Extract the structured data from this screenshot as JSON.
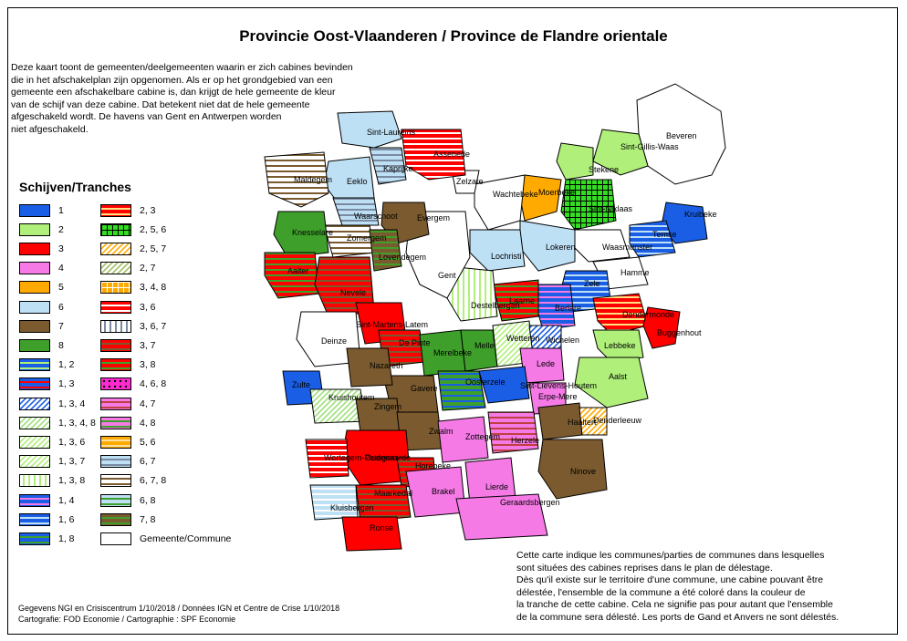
{
  "title": "Provincie Oost-Vlaanderen / Province de Flandre orientale",
  "intro_nl": "Deze kaart toont de gemeenten/deelgemeenten waarin er zich cabines bevinden\n die in het afschakelplan zijn opgenomen. Als er op het grondgebied van een\n gemeente  een afschakelbare  cabine is, dan krijgt de hele gemeente  de kleur\nvan de schijf van deze cabine. Dat betekent niet dat de hele gemeente\nafgeschakeld wordt. De havens van Gent en Antwerpen  worden\n niet afgeschakeld.",
  "intro_fr": "Cette carte indique les communes/parties de communes dans lesquelles\nsont situées des cabines reprises dans le plan de délestage.\nDès qu'il existe sur le territoire  d'une commune, une cabine pouvant être\ndélestée,  l'ensemble de la commune  a été coloré dans la couleur de\n la tranche  de cette cabine.  Cela ne signifie pas pour autant que  l'ensemble\nde la commune sera délesté. Les ports de Gand et Anvers ne sont délestés.",
  "credits": "Gegevens NGI en Crisiscentrum 1/10/2018 / Données IGN et Centre de Crise 1/10/2018\nCartografie: FOD Economie / Cartographie : SPF Economie",
  "legend": {
    "title": "Schijven/Tranches",
    "items": [
      {
        "label": "1",
        "fill": "#1a5ee6",
        "pattern": "solid",
        "color2": ""
      },
      {
        "label": "2",
        "fill": "#b0f07a",
        "pattern": "solid",
        "color2": ""
      },
      {
        "label": "3",
        "fill": "#ff0000",
        "pattern": "solid",
        "color2": ""
      },
      {
        "label": "4",
        "fill": "#f57ae6",
        "pattern": "solid",
        "color2": ""
      },
      {
        "label": "5",
        "fill": "#ffaa00",
        "pattern": "solid",
        "color2": ""
      },
      {
        "label": "6",
        "fill": "#bee0f5",
        "pattern": "solid",
        "color2": ""
      },
      {
        "label": "7",
        "fill": "#7a5a2e",
        "pattern": "solid",
        "color2": ""
      },
      {
        "label": "8",
        "fill": "#3ea02a",
        "pattern": "solid",
        "color2": ""
      },
      {
        "label": "1, 2",
        "fill": "#1a5ee6",
        "pattern": "horizontal",
        "color2": "#b0f07a"
      },
      {
        "label": "1, 3",
        "fill": "#1a5ee6",
        "pattern": "horizontal",
        "color2": "#ff0000"
      },
      {
        "label": "1, 3, 4",
        "fill": "#ffffff",
        "pattern": "diagonal",
        "color2": "#1a5ee6"
      },
      {
        "label": "1, 3, 4, 8",
        "fill": "#ffffff",
        "pattern": "diagonal",
        "color2": "#9ee07a"
      },
      {
        "label": "1, 3, 6",
        "fill": "#ffffff",
        "pattern": "diagonal",
        "color2": "#b0f07a"
      },
      {
        "label": "1, 3, 7",
        "fill": "#ffffff",
        "pattern": "diagonal",
        "color2": "#b0f07a"
      },
      {
        "label": "1, 3, 8",
        "fill": "#ffffff",
        "pattern": "vertical",
        "color2": "#b0f07a"
      },
      {
        "label": "1, 4",
        "fill": "#1a5ee6",
        "pattern": "horizontal",
        "color2": "#f57ae6"
      },
      {
        "label": "1, 6",
        "fill": "#1a5ee6",
        "pattern": "horizontal",
        "color2": "#bee0f5"
      },
      {
        "label": "1, 8",
        "fill": "#1a5ee6",
        "pattern": "horizontal",
        "color2": "#3ea02a"
      },
      {
        "label": "2, 3",
        "fill": "#ff0000",
        "pattern": "horizontal",
        "color2": "#ffe080"
      },
      {
        "label": "2, 5, 6",
        "fill": "#33dd22",
        "pattern": "grid",
        "color2": "#000000"
      },
      {
        "label": "2, 5, 7",
        "fill": "#ffffff",
        "pattern": "diagonal",
        "color2": "#ffaa00"
      },
      {
        "label": "2, 7",
        "fill": "#ffffff",
        "pattern": "diagonal",
        "color2": "#a0c060"
      },
      {
        "label": "3, 4, 8",
        "fill": "#ffaa00",
        "pattern": "grid",
        "color2": "#ffffff"
      },
      {
        "label": "3, 6",
        "fill": "#ff0000",
        "pattern": "horizontal",
        "color2": "#ffffff"
      },
      {
        "label": "3, 6, 7",
        "fill": "#ffffff",
        "pattern": "vertical",
        "color2": "#7a8aa0"
      },
      {
        "label": "3, 7",
        "fill": "#ff0000",
        "pattern": "horizontal",
        "color2": "#7a5a2e"
      },
      {
        "label": "3, 8",
        "fill": "#ff0000",
        "pattern": "horizontal",
        "color2": "#3ea02a"
      },
      {
        "label": "4, 6, 8",
        "fill": "#ff2ad0",
        "pattern": "dots",
        "color2": "#000000"
      },
      {
        "label": "4, 7",
        "fill": "#f57ae6",
        "pattern": "horizontal",
        "color2": "#c04040"
      },
      {
        "label": "4, 8",
        "fill": "#f57ae6",
        "pattern": "horizontal",
        "color2": "#3ea02a"
      },
      {
        "label": "5, 6",
        "fill": "#ffaa00",
        "pattern": "horizontal",
        "color2": "#ffe0a0"
      },
      {
        "label": "6, 7",
        "fill": "#bee0f5",
        "pattern": "horizontal",
        "color2": "#7a8aa0"
      },
      {
        "label": "6, 7, 8",
        "fill": "#ffffff",
        "pattern": "horizontal",
        "color2": "#7a5a2e"
      },
      {
        "label": "6, 8",
        "fill": "#bee0f5",
        "pattern": "horizontal",
        "color2": "#3ea02a"
      },
      {
        "label": "7, 8",
        "fill": "#7a5a2e",
        "pattern": "horizontal",
        "color2": "#3ea02a"
      },
      {
        "label": "Gemeente/Commune",
        "fill": "#ffffff",
        "pattern": "solid",
        "color2": ""
      }
    ]
  },
  "municipalities": [
    {
      "name": "Beveren",
      "fill": "#ffffff",
      "pattern": "solid",
      "color2": ""
    },
    {
      "name": "Sint-Gillis-Waas",
      "fill": "#b0f07a",
      "pattern": "solid",
      "color2": ""
    },
    {
      "name": "Stekene",
      "fill": "#b0f07a",
      "pattern": "solid",
      "color2": ""
    },
    {
      "name": "Moerbeke",
      "fill": "#ffaa00",
      "pattern": "solid",
      "color2": ""
    },
    {
      "name": "Sint-Niklaas",
      "fill": "#33dd22",
      "pattern": "grid",
      "color2": "#000000"
    },
    {
      "name": "Kruibeke",
      "fill": "#1a5ee6",
      "pattern": "solid",
      "color2": ""
    },
    {
      "name": "Temse",
      "fill": "#1a5ee6",
      "pattern": "horizontal",
      "color2": "#bee0f5"
    },
    {
      "name": "Waasmunster",
      "fill": "#ffffff",
      "pattern": "solid",
      "color2": ""
    },
    {
      "name": "Lokeren",
      "fill": "#bee0f5",
      "pattern": "solid",
      "color2": ""
    },
    {
      "name": "Wachtebeke",
      "fill": "#ffffff",
      "pattern": "solid",
      "color2": ""
    },
    {
      "name": "Zelzate",
      "fill": "#ffffff",
      "pattern": "solid",
      "color2": ""
    },
    {
      "name": "Hamme",
      "fill": "#ffffff",
      "pattern": "solid",
      "color2": ""
    },
    {
      "name": "Zele",
      "fill": "#1a5ee6",
      "pattern": "horizontal",
      "color2": "#bee0f5"
    },
    {
      "name": "Berlare",
      "fill": "#1a5ee6",
      "pattern": "horizontal",
      "color2": "#f57ae6"
    },
    {
      "name": "Dendermonde",
      "fill": "#ff0000",
      "pattern": "horizontal",
      "color2": "#ffe080"
    },
    {
      "name": "Buggenhout",
      "fill": "#ff0000",
      "pattern": "solid",
      "color2": ""
    },
    {
      "name": "Lebbeke",
      "fill": "#b0f07a",
      "pattern": "solid",
      "color2": ""
    },
    {
      "name": "Aalst",
      "fill": "#b0f07a",
      "pattern": "solid",
      "color2": ""
    },
    {
      "name": "Lochristi",
      "fill": "#bee0f5",
      "pattern": "solid",
      "color2": ""
    },
    {
      "name": "Laarne",
      "fill": "#ff0000",
      "pattern": "horizontal",
      "color2": "#3ea02a"
    },
    {
      "name": "Destelbergen",
      "fill": "#ffffff",
      "pattern": "vertical",
      "color2": "#b0f07a"
    },
    {
      "name": "Gent",
      "fill": "#ffffff",
      "pattern": "solid",
      "color2": ""
    },
    {
      "name": "Evergem",
      "fill": "#7a5a2e",
      "pattern": "solid",
      "color2": ""
    },
    {
      "name": "Assenede",
      "fill": "#ff0000",
      "pattern": "horizontal",
      "color2": "#ffffff"
    },
    {
      "name": "Sint-Laureins",
      "fill": "#bee0f5",
      "pattern": "solid",
      "color2": ""
    },
    {
      "name": "Kaprijke",
      "fill": "#bee0f5",
      "pattern": "horizontal",
      "color2": "#7a8aa0"
    },
    {
      "name": "Eeklo",
      "fill": "#bee0f5",
      "pattern": "solid",
      "color2": ""
    },
    {
      "name": "Maldegem",
      "fill": "#ffffff",
      "pattern": "horizontal",
      "color2": "#7a5a2e"
    },
    {
      "name": "Waarschoot",
      "fill": "#bee0f5",
      "pattern": "horizontal",
      "color2": "#7a8aa0"
    },
    {
      "name": "Zomergem",
      "fill": "#ffffff",
      "pattern": "horizontal",
      "color2": "#7a5a2e"
    },
    {
      "name": "Lovendegem",
      "fill": "#7a5a2e",
      "pattern": "horizontal",
      "color2": "#3ea02a"
    },
    {
      "name": "Knesselare",
      "fill": "#3ea02a",
      "pattern": "solid",
      "color2": ""
    },
    {
      "name": "Aalter",
      "fill": "#ff0000",
      "pattern": "horizontal",
      "color2": "#3ea02a"
    },
    {
      "name": "Nevele",
      "fill": "#ff0000",
      "pattern": "horizontal",
      "color2": "#7a5a2e"
    },
    {
      "name": "Sint-Martens-Latem",
      "fill": "#ff0000",
      "pattern": "solid",
      "color2": ""
    },
    {
      "name": "Deinze",
      "fill": "#ffffff",
      "pattern": "solid",
      "color2": ""
    },
    {
      "name": "De Pinte",
      "fill": "#ff0000",
      "pattern": "horizontal",
      "color2": "#7a5a2e"
    },
    {
      "name": "Merelbeke",
      "fill": "#3ea02a",
      "pattern": "solid",
      "color2": ""
    },
    {
      "name": "Melle",
      "fill": "#3ea02a",
      "pattern": "solid",
      "color2": ""
    },
    {
      "name": "Wetteren",
      "fill": "#ffffff",
      "pattern": "diagonal",
      "color2": "#b0f07a"
    },
    {
      "name": "Wichelen",
      "fill": "#ffffff",
      "pattern": "diagonal",
      "color2": "#1a5ee6"
    },
    {
      "name": "Lede",
      "fill": "#f57ae6",
      "pattern": "solid",
      "color2": ""
    },
    {
      "name": "Erpe-Mere",
      "fill": "#f57ae6",
      "pattern": "solid",
      "color2": ""
    },
    {
      "name": "Sint-Lievens-Houtem",
      "fill": "#1a5ee6",
      "pattern": "solid",
      "color2": ""
    },
    {
      "name": "Oosterzele",
      "fill": "#3ea02a",
      "pattern": "horizontal",
      "color2": "#1a5ee6"
    },
    {
      "name": "Gavere",
      "fill": "#7a5a2e",
      "pattern": "solid",
      "color2": ""
    },
    {
      "name": "Nazareth",
      "fill": "#7a5a2e",
      "pattern": "solid",
      "color2": ""
    },
    {
      "name": "Zulte",
      "fill": "#1a5ee6",
      "pattern": "solid",
      "color2": ""
    },
    {
      "name": "Kruishoutem",
      "fill": "#ffffff",
      "pattern": "diagonal",
      "color2": "#9ee07a"
    },
    {
      "name": "Zingem",
      "fill": "#7a5a2e",
      "pattern": "solid",
      "color2": ""
    },
    {
      "name": "Zwalm",
      "fill": "#7a5a2e",
      "pattern": "solid",
      "color2": ""
    },
    {
      "name": "Oudenaarde",
      "fill": "#ff0000",
      "pattern": "solid",
      "color2": ""
    },
    {
      "name": "Wortegem-Petegem",
      "fill": "#ff0000",
      "pattern": "horizontal",
      "color2": "#ffffff"
    },
    {
      "name": "Horebeke",
      "fill": "#ff0000",
      "pattern": "horizontal",
      "color2": "#7a5a2e"
    },
    {
      "name": "Zottegem",
      "fill": "#f57ae6",
      "pattern": "solid",
      "color2": ""
    },
    {
      "name": "Herzele",
      "fill": "#f57ae6",
      "pattern": "horizontal",
      "color2": "#c04040"
    },
    {
      "name": "Haaltert",
      "fill": "#7a5a2e",
      "pattern": "solid",
      "color2": ""
    },
    {
      "name": "Denderleeuw",
      "fill": "#ffffff",
      "pattern": "diagonal",
      "color2": "#ffaa00"
    },
    {
      "name": "Ninove",
      "fill": "#7a5a2e",
      "pattern": "solid",
      "color2": ""
    },
    {
      "name": "Brakel",
      "fill": "#f57ae6",
      "pattern": "solid",
      "color2": ""
    },
    {
      "name": "Lierde",
      "fill": "#f57ae6",
      "pattern": "solid",
      "color2": ""
    },
    {
      "name": "Geraardsbergen",
      "fill": "#f57ae6",
      "pattern": "solid",
      "color2": ""
    },
    {
      "name": "Maarkedal",
      "fill": "#ff0000",
      "pattern": "horizontal",
      "color2": "#7a5a2e"
    },
    {
      "name": "Kluisbergen",
      "fill": "#bee0f5",
      "pattern": "horizontal",
      "color2": "#ffffff"
    },
    {
      "name": "Ronse",
      "fill": "#ff0000",
      "pattern": "solid",
      "color2": ""
    }
  ]
}
